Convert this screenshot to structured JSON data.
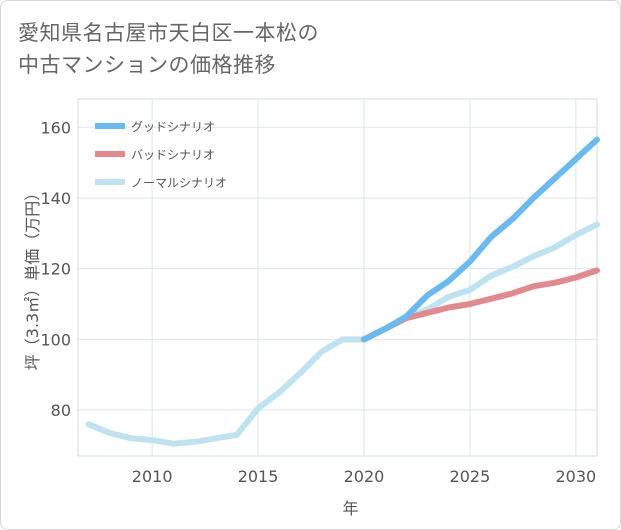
{
  "title_lines": [
    "愛知県名古屋市天白区一本松の",
    "中古マンションの価格推移"
  ],
  "chart_data": {
    "type": "line",
    "xlabel": "年",
    "ylabel": "坪（3.3㎡）単価（万円）",
    "xlim": [
      2006.5,
      2031
    ],
    "ylim": [
      67,
      168
    ],
    "xticks": [
      2010,
      2015,
      2020,
      2025,
      2030
    ],
    "yticks": [
      80,
      100,
      120,
      140,
      160
    ],
    "grid": true,
    "legend_position": "top-left",
    "series": [
      {
        "name": "グッドシナリオ",
        "color": "#6bb9ef",
        "x": [
          2020,
          2021,
          2022,
          2023,
          2024,
          2025,
          2026,
          2027,
          2028,
          2029,
          2030,
          2031
        ],
        "values": [
          100,
          103,
          106.5,
          112.5,
          116.5,
          122,
          129,
          134,
          140,
          145.5,
          151,
          156.5
        ]
      },
      {
        "name": "バッドシナリオ",
        "color": "#e08a90",
        "x": [
          2020,
          2021,
          2022,
          2023,
          2024,
          2025,
          2026,
          2027,
          2028,
          2029,
          2030,
          2031
        ],
        "values": [
          100,
          103,
          106,
          107.5,
          109,
          110,
          111.5,
          113,
          115,
          116,
          117.5,
          119.5
        ]
      },
      {
        "name": "ノーマルシナリオ",
        "color": "#bfe2f0",
        "x": [
          2007,
          2008,
          2009,
          2010,
          2011,
          2012,
          2013,
          2014,
          2015,
          2016,
          2017,
          2018,
          2019,
          2020,
          2021,
          2022,
          2023,
          2024,
          2025,
          2026,
          2027,
          2028,
          2029,
          2030,
          2031
        ],
        "values": [
          76,
          73.5,
          72,
          71.5,
          70.5,
          71,
          72,
          73,
          80.5,
          85,
          90.5,
          96.5,
          100,
          100,
          103,
          106,
          108.5,
          112,
          114,
          118,
          120.5,
          123.5,
          126,
          129.5,
          132.5
        ]
      }
    ]
  }
}
